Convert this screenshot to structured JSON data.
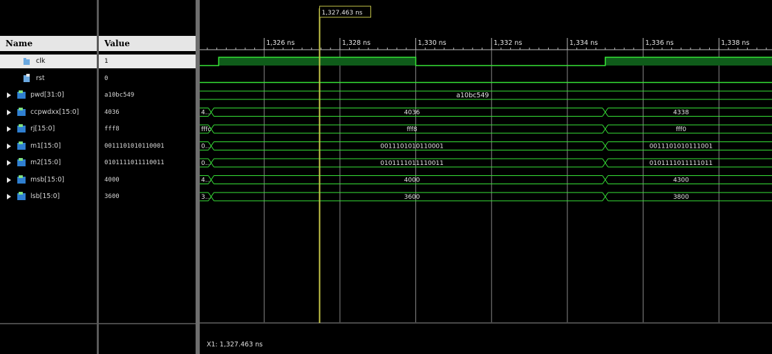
{
  "columns": {
    "name_header": "Name",
    "value_header": "Value"
  },
  "signals": [
    {
      "name": "clk",
      "value": "1",
      "expandable": false,
      "icon": "single-bit-signal-icon",
      "selected": true
    },
    {
      "name": "rst",
      "value": "0",
      "expandable": false,
      "icon": "single-bit-signal-icon",
      "selected": false
    },
    {
      "name": "pwd[31:0]",
      "value": "a10bc549",
      "expandable": true,
      "icon": "bus-signal-icon",
      "selected": false
    },
    {
      "name": "ccpwdxx[15:0]",
      "value": "4036",
      "expandable": true,
      "icon": "bus-signal-icon",
      "selected": false
    },
    {
      "name": "rj[15:0]",
      "value": "fff8",
      "expandable": true,
      "icon": "bus-signal-icon",
      "selected": false
    },
    {
      "name": "m1[15:0]",
      "value": "0011101010110001",
      "expandable": true,
      "icon": "bus-signal-icon",
      "selected": false
    },
    {
      "name": "m2[15:0]",
      "value": "0101111011110011",
      "expandable": true,
      "icon": "bus-signal-icon",
      "selected": false
    },
    {
      "name": "msb[15:0]",
      "value": "4000",
      "expandable": true,
      "icon": "bus-signal-icon",
      "selected": false
    },
    {
      "name": "lsb[15:0]",
      "value": "3600",
      "expandable": true,
      "icon": "bus-signal-icon",
      "selected": false
    }
  ],
  "timeline": {
    "labels": [
      "1,326 ns",
      "1,328 ns",
      "1,330 ns",
      "1,332 ns",
      "1,334 ns",
      "1,336 ns",
      "1,338 ns"
    ],
    "major_ticks_ns": [
      1326,
      1328,
      1330,
      1332,
      1334,
      1336,
      1338
    ],
    "view_start_ns": 1324.3,
    "view_end_ns": 1339.4
  },
  "cursor": {
    "time_ns": 1327.463,
    "label": "1,327.463 ns",
    "readout": "X1: 1,327.463 ns"
  },
  "waveforms": {
    "clk": {
      "transitions_ns": [
        1324.8,
        1330.0,
        1335.0
      ],
      "levels": [
        0,
        1,
        0,
        1
      ]
    },
    "pwd": {
      "value": "a10bc549"
    },
    "ccpwdxx": {
      "segments": [
        {
          "label": "4..."
        },
        {
          "label": "4036"
        },
        {
          "label": "4338"
        }
      ]
    },
    "rj": {
      "segments": [
        {
          "label": "fffc"
        },
        {
          "label": "fff8"
        },
        {
          "label": "fff0"
        }
      ]
    },
    "m1": {
      "segments": [
        {
          "label": "0..."
        },
        {
          "label": "0011101010110001"
        },
        {
          "label": "0011101010111001"
        }
      ]
    },
    "m2": {
      "segments": [
        {
          "label": "0..."
        },
        {
          "label": "0101111011110011"
        },
        {
          "label": "0101111011111011"
        }
      ]
    },
    "msb": {
      "segments": [
        {
          "label": "4..."
        },
        {
          "label": "4000"
        },
        {
          "label": "4300"
        }
      ]
    },
    "lsb": {
      "segments": [
        {
          "label": "3..."
        },
        {
          "label": "3600"
        },
        {
          "label": "3800"
        }
      ]
    },
    "bus_transitions_ns": [
      1324.6,
      1335.0
    ]
  },
  "colors": {
    "background": "#000000",
    "wave": "#37e637",
    "clk_fill": "#0f5c1a",
    "cursor": "#c8c84a",
    "grid": "#8a8a8a",
    "ruler_tick": "#bfbfbf",
    "text": "#e6e6e6"
  }
}
